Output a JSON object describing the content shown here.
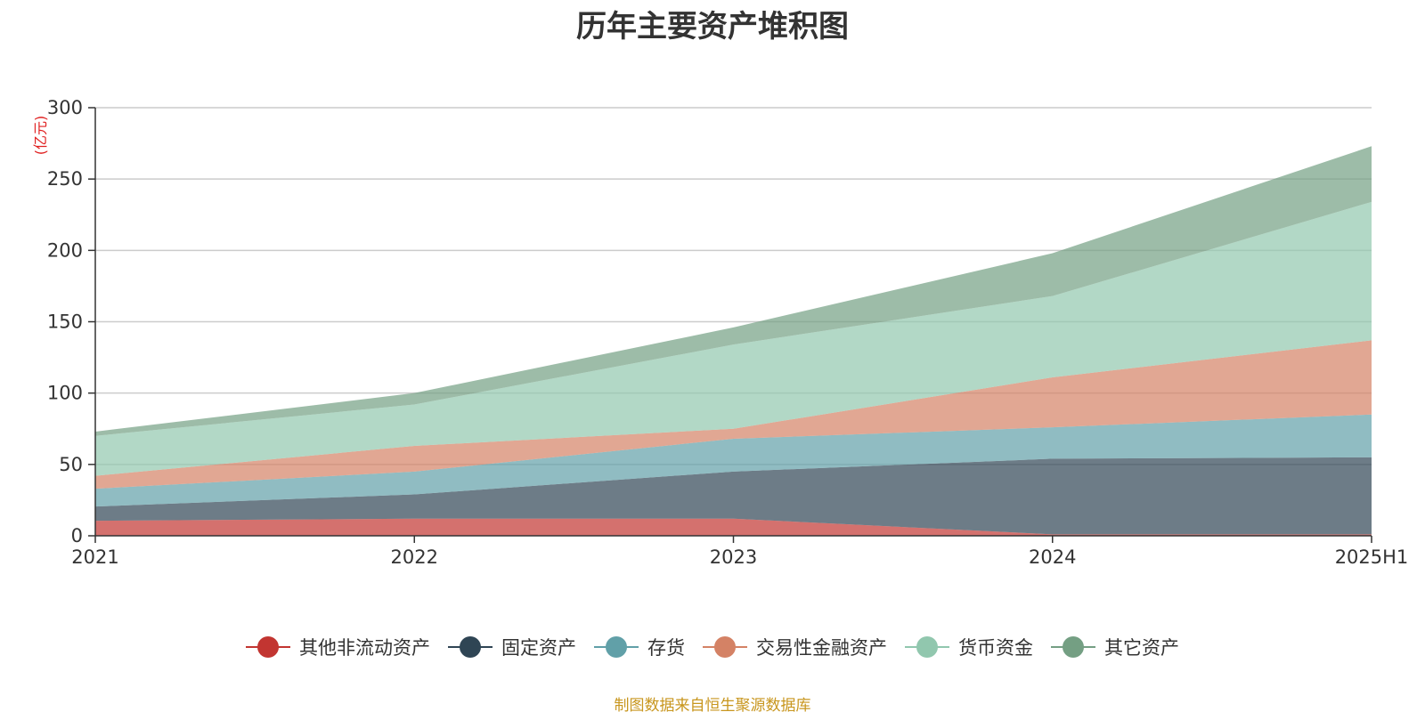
{
  "title": "历年主要资产堆积图",
  "unit_label": "(亿元)",
  "source_note": "制图数据来自恒生聚源数据库",
  "chart_data": {
    "type": "area",
    "stacked": true,
    "title": "历年主要资产堆积图",
    "ylabel": "(亿元)",
    "ylim": [
      0,
      300
    ],
    "y_ticks": [
      0,
      50,
      100,
      150,
      200,
      250,
      300
    ],
    "grid": true,
    "legend_position": "bottom",
    "x": [
      "2021",
      "2022",
      "2023",
      "2024",
      "2025H1"
    ],
    "series": [
      {
        "name": "其他非流动资产",
        "color": "#c23531",
        "values": [
          10.5,
          12,
          12,
          1,
          1
        ]
      },
      {
        "name": "固定资产",
        "color": "#2f4554",
        "values": [
          10,
          17,
          33,
          53,
          54
        ]
      },
      {
        "name": "存货",
        "color": "#61a0a8",
        "values": [
          12.5,
          16,
          23,
          22,
          30
        ]
      },
      {
        "name": "交易性金融资产",
        "color": "#d48265",
        "values": [
          9,
          18,
          7,
          35,
          52
        ]
      },
      {
        "name": "货币资金",
        "color": "#91c7ae",
        "values": [
          28,
          29,
          59,
          57,
          97
        ]
      },
      {
        "name": "其它资产",
        "color": "#749f83",
        "values": [
          3,
          8,
          12,
          30,
          39
        ]
      }
    ]
  }
}
